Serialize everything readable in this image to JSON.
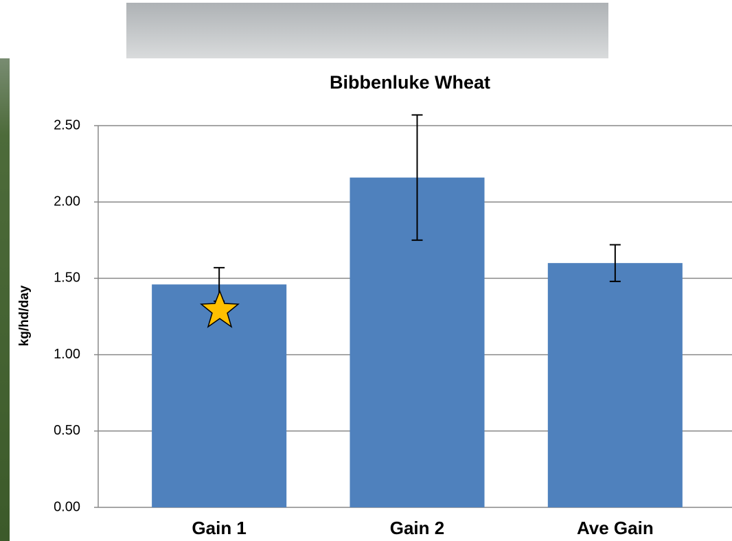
{
  "chart_data": {
    "type": "bar",
    "title": "Bibbenluke Wheat",
    "ylabel": "kg/hd/day",
    "categories": [
      "Gain 1",
      "Gain 2",
      "Ave Gain"
    ],
    "values": [
      1.46,
      2.16,
      1.6
    ],
    "errors": [
      0.11,
      0.41,
      0.12
    ],
    "color": "#4f81bd",
    "ylim": [
      0,
      2.5
    ],
    "yticks": [
      {
        "value": 0,
        "label": "0.00"
      },
      {
        "value": 0.5,
        "label": "0.50"
      },
      {
        "value": 1,
        "label": "1.00"
      },
      {
        "value": 1.5,
        "label": "1.50"
      },
      {
        "value": 2,
        "label": "2.00"
      },
      {
        "value": 2.5,
        "label": "2.50"
      }
    ],
    "grid": true
  }
}
